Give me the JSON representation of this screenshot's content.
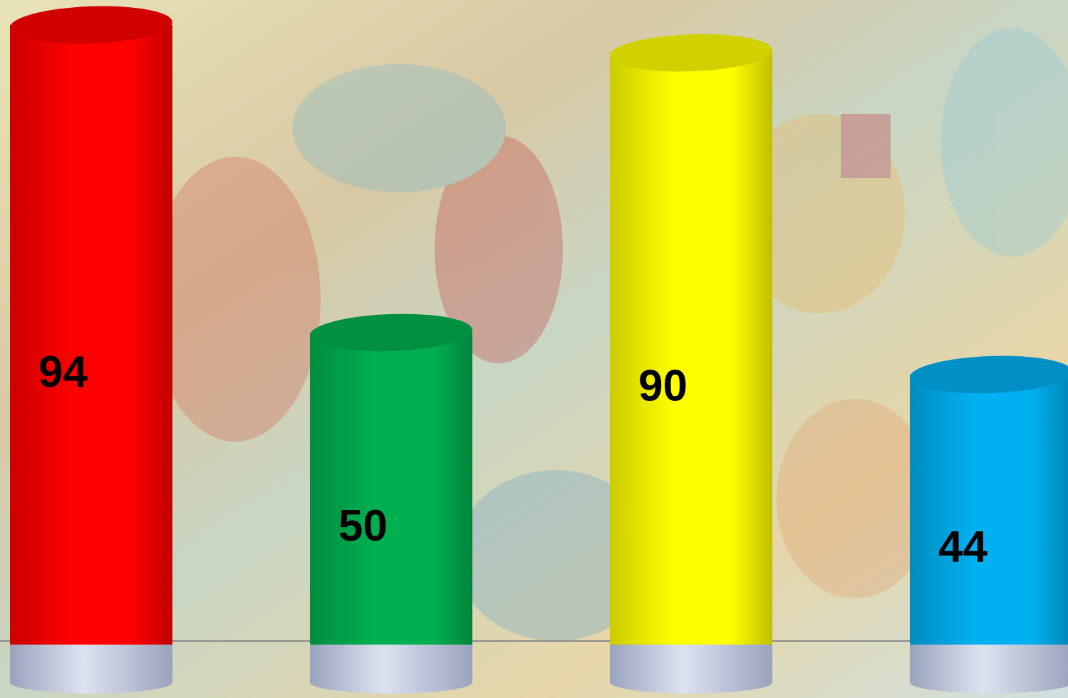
{
  "chart_data": {
    "type": "cylinder-bar",
    "categories": [
      null,
      null,
      null,
      null
    ],
    "values": [
      94,
      50,
      90,
      44
    ],
    "colors": [
      "#ff0000",
      "#00b050",
      "#ffff00",
      "#00b0f0"
    ],
    "ylim": [
      0,
      100
    ]
  }
}
